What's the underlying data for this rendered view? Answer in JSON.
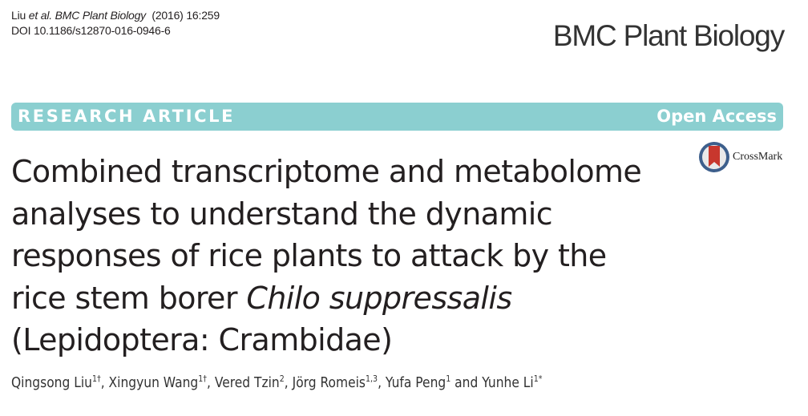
{
  "citation": {
    "author": "Liu",
    "etal": "et al.",
    "journal": "BMC Plant Biology",
    "year_vol": "(2016) 16:259",
    "doi": "DOI 10.1186/s12870-016-0946-6"
  },
  "journal_logo": "BMC Plant Biology",
  "banner": {
    "type": "RESEARCH ARTICLE",
    "access": "Open Access",
    "color": "#8bcfd0"
  },
  "crossmark": {
    "label": "CrossMark",
    "icon": "crossmark-icon"
  },
  "title": {
    "line1": "Combined transcriptome and metabolome",
    "line2": "analyses to understand the dynamic",
    "line3": "responses of rice plants to attack by the",
    "line4_prefix": "rice stem borer ",
    "line4_italic": "Chilo suppressalis",
    "line5": "(Lepidoptera: Crambidae)"
  },
  "authors": [
    {
      "name": "Qingsong Liu",
      "sup": "1†",
      "sep": ", "
    },
    {
      "name": "Xingyun Wang",
      "sup": "1†",
      "sep": ", "
    },
    {
      "name": "Vered Tzin",
      "sup": "2",
      "sep": ", "
    },
    {
      "name": "Jörg Romeis",
      "sup": "1,3",
      "sep": ", "
    },
    {
      "name": "Yufa Peng",
      "sup": "1",
      "sep": " and "
    },
    {
      "name": "Yunhe Li",
      "sup": "1*",
      "sep": ""
    }
  ]
}
